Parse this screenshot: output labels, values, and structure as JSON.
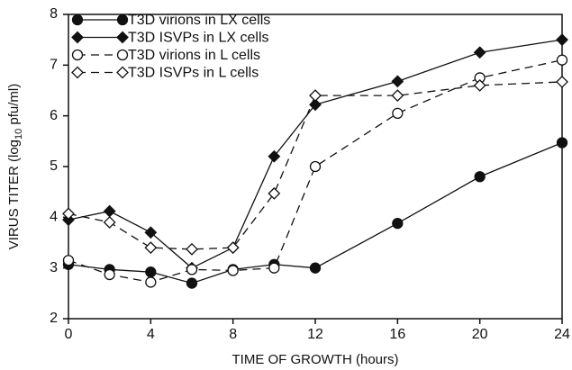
{
  "chart_data": {
    "type": "line",
    "x_label": "TIME OF GROWTH (hours)",
    "y_label": {
      "text": "VIRUS TITER (log",
      "sub": "10",
      "rest": " pfu/ml)"
    },
    "xlim": [
      0,
      24
    ],
    "xticks": [
      0,
      4,
      8,
      12,
      16,
      20,
      24
    ],
    "ylim": [
      2,
      8
    ],
    "yticks": [
      2,
      3,
      4,
      5,
      6,
      7,
      8
    ],
    "legend": "upper left",
    "series": [
      {
        "name": "T3D virions in LX cells",
        "color": "#111111",
        "marker": "circle",
        "filled": true,
        "dashed": false,
        "x": [
          0,
          2,
          4,
          6,
          8,
          10,
          12,
          16,
          20,
          24
        ],
        "values": [
          3.07,
          2.97,
          2.92,
          2.7,
          2.97,
          3.07,
          3.0,
          3.88,
          4.8,
          5.47
        ]
      },
      {
        "name": "T3D ISVPs in LX cells",
        "color": "#111111",
        "marker": "diamond",
        "filled": true,
        "dashed": false,
        "x": [
          0,
          2,
          4,
          6,
          8,
          10,
          12,
          16,
          20,
          24
        ],
        "values": [
          3.95,
          4.12,
          3.7,
          3.0,
          3.4,
          5.2,
          6.22,
          6.68,
          7.25,
          7.5
        ]
      },
      {
        "name": "T3D virions in L cells",
        "color": "#111111",
        "marker": "circle",
        "filled": false,
        "dashed": true,
        "x": [
          0,
          2,
          4,
          6,
          8,
          10,
          12,
          16,
          20,
          24
        ],
        "values": [
          3.15,
          2.87,
          2.72,
          2.97,
          2.95,
          3.0,
          5.0,
          6.05,
          6.75,
          7.1
        ]
      },
      {
        "name": "T3D ISVPs in L cells",
        "color": "#111111",
        "marker": "diamond",
        "filled": false,
        "dashed": true,
        "x": [
          0,
          2,
          4,
          6,
          8,
          10,
          12,
          16,
          20,
          24
        ],
        "values": [
          4.07,
          3.9,
          3.4,
          3.37,
          3.4,
          4.47,
          6.4,
          6.4,
          6.6,
          6.67
        ]
      }
    ]
  }
}
